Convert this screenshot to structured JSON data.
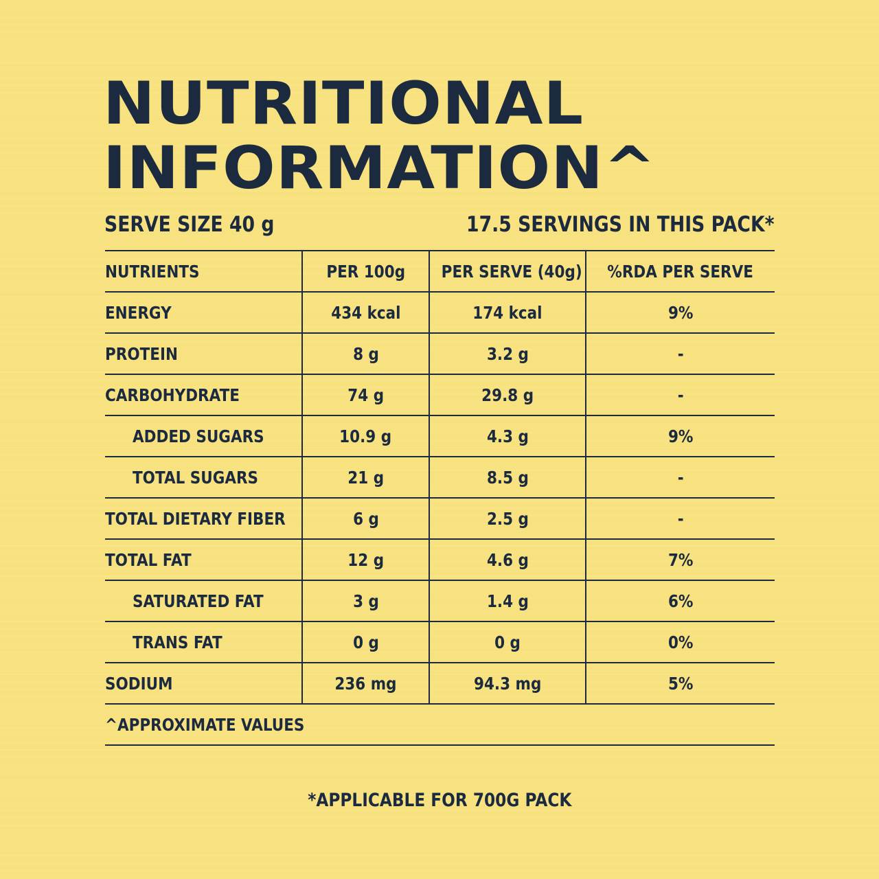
{
  "title": {
    "line1": "NUTRITIONAL",
    "line2": "INFORMATION^"
  },
  "serve": {
    "size": "SERVE SIZE 40 g",
    "servings": "17.5 SERVINGS IN THIS PACK*"
  },
  "table": {
    "headers": [
      "NUTRIENTS",
      "PER 100g",
      "PER SERVE (40g)",
      "%RDA PER SERVE"
    ],
    "rows": [
      {
        "nutrient": "ENERGY",
        "per100": "434 kcal",
        "perServe": "174 kcal",
        "rda": "9%"
      },
      {
        "nutrient": "PROTEIN",
        "per100": "8 g",
        "perServe": "3.2 g",
        "rda": "-"
      },
      {
        "nutrient": "CARBOHYDRATE",
        "per100": "74 g",
        "perServe": "29.8 g",
        "rda": "-"
      },
      {
        "nutrient": "ADDED SUGARS",
        "per100": "10.9 g",
        "perServe": "4.3 g",
        "rda": "9%"
      },
      {
        "nutrient": "TOTAL SUGARS",
        "per100": "21 g",
        "perServe": "8.5 g",
        "rda": "-"
      },
      {
        "nutrient": "TOTAL DIETARY FIBER",
        "per100": "6 g",
        "perServe": "2.5 g",
        "rda": "-"
      },
      {
        "nutrient": "TOTAL FAT",
        "per100": "12 g",
        "perServe": "4.6 g",
        "rda": "7%"
      },
      {
        "nutrient": "SATURATED FAT",
        "per100": "3 g",
        "perServe": "1.4 g",
        "rda": "6%"
      },
      {
        "nutrient": "TRANS FAT",
        "per100": "0 g",
        "perServe": "0 g",
        "rda": "0%"
      },
      {
        "nutrient": "SODIUM",
        "per100": "236 mg",
        "perServe": "94.3 mg",
        "rda": "5%"
      }
    ],
    "footnote": "^APPROXIMATE VALUES"
  },
  "bottom_note": "*APPLICABLE FOR 700G PACK",
  "colors": {
    "background": "#f8e27f",
    "text": "#1c2a3f"
  }
}
